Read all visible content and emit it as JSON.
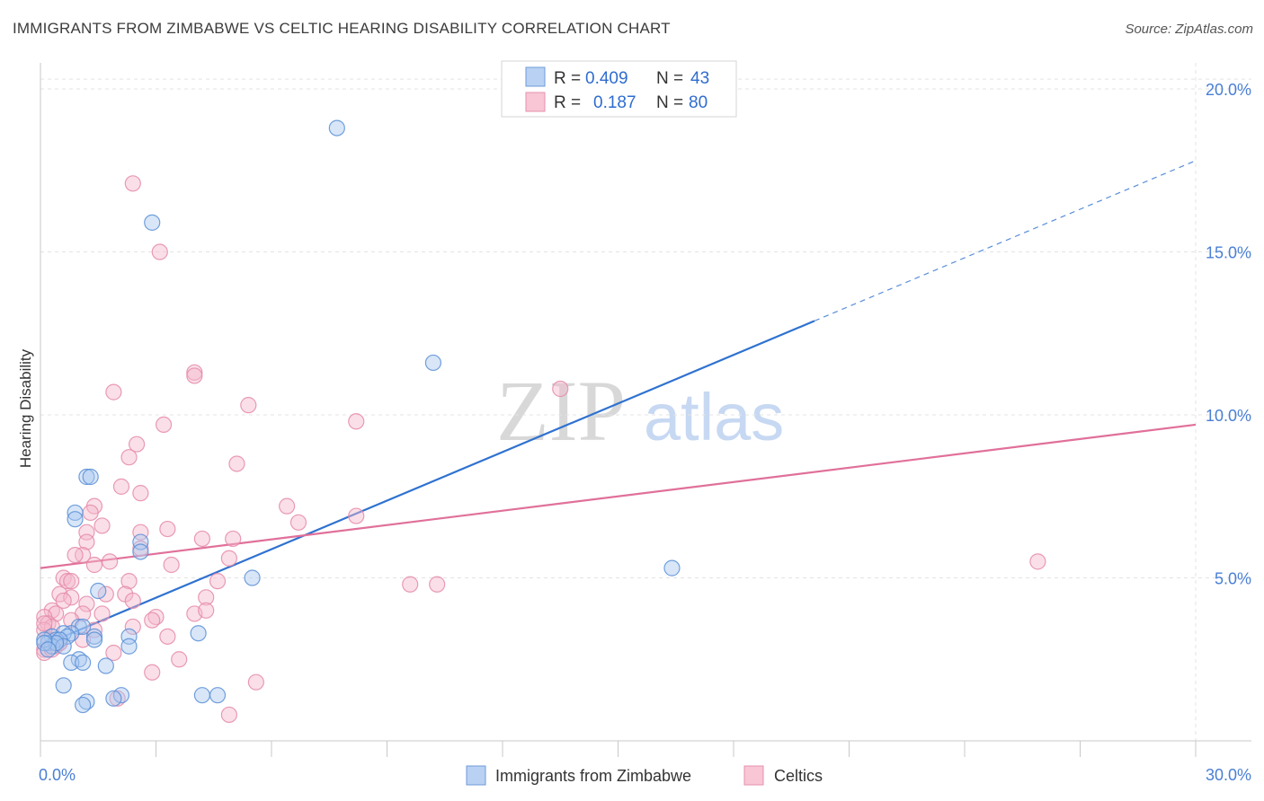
{
  "header": {
    "title": "IMMIGRANTS FROM ZIMBABWE VS CELTIC HEARING DISABILITY CORRELATION CHART",
    "source": "Source: ZipAtlas.com"
  },
  "watermark": {
    "zip": "ZIP",
    "atlas": "atlas"
  },
  "legend": {
    "rows": [
      {
        "r_label": "R =",
        "r_value": "0.409",
        "n_label": "N =",
        "n_value": "43"
      },
      {
        "r_label": "R =",
        "r_value": "0.187",
        "n_label": "N =",
        "n_value": "80"
      }
    ]
  },
  "bottom_legend": {
    "items": [
      {
        "label": "Immigrants from Zimbabwe"
      },
      {
        "label": "Celtics"
      }
    ]
  },
  "colors": {
    "blue_fill": "#a9c7f0",
    "blue_stroke": "#5b8fd6",
    "blue_line": "#2f72d0",
    "pink_fill": "#f5b9cc",
    "pink_stroke": "#e58aa8",
    "pink_line": "#e0709a",
    "grid": "#e3e3e3",
    "tick_label": "#4a7fd4"
  },
  "chart_data": {
    "type": "scatter",
    "title": "IMMIGRANTS FROM ZIMBABWE VS CELTIC HEARING DISABILITY CORRELATION CHART",
    "xlabel": "",
    "ylabel": "Hearing Disability",
    "xlim": [
      0,
      30
    ],
    "ylim": [
      0,
      20.8
    ],
    "x_tick_labels": [
      "0.0%",
      "30.0%"
    ],
    "y_ticks": [
      5,
      10,
      15,
      20
    ],
    "y_tick_labels": [
      "5.0%",
      "10.0%",
      "15.0%",
      "20.0%"
    ],
    "grid": true,
    "legend_position": "top-center",
    "series": [
      {
        "name": "Immigrants from Zimbabwe",
        "color": "#5b8fd6",
        "r": 0.409,
        "n": 43,
        "trend": {
          "x0": 0,
          "y0": 2.9,
          "x1": 30,
          "y1": 17.8,
          "solid_until_x": 20.1
        },
        "points": [
          [
            7.7,
            18.8
          ],
          [
            2.9,
            15.9
          ],
          [
            10.2,
            11.6
          ],
          [
            1.2,
            8.1
          ],
          [
            1.3,
            8.1
          ],
          [
            0.9,
            7.0
          ],
          [
            0.9,
            6.8
          ],
          [
            2.6,
            6.1
          ],
          [
            2.6,
            5.8
          ],
          [
            5.5,
            5.0
          ],
          [
            16.4,
            5.3
          ],
          [
            1.5,
            4.6
          ],
          [
            1.0,
            3.5
          ],
          [
            1.1,
            3.5
          ],
          [
            0.8,
            3.3
          ],
          [
            0.6,
            3.3
          ],
          [
            0.7,
            3.2
          ],
          [
            1.4,
            3.2
          ],
          [
            0.3,
            3.2
          ],
          [
            0.4,
            3.1
          ],
          [
            0.2,
            3.0
          ],
          [
            0.5,
            3.1
          ],
          [
            0.3,
            2.9
          ],
          [
            0.6,
            2.9
          ],
          [
            0.4,
            3.0
          ],
          [
            0.1,
            3.1
          ],
          [
            1.4,
            3.1
          ],
          [
            2.3,
            3.2
          ],
          [
            2.3,
            2.9
          ],
          [
            4.1,
            3.3
          ],
          [
            1.0,
            2.5
          ],
          [
            0.8,
            2.4
          ],
          [
            1.1,
            2.4
          ],
          [
            1.7,
            2.3
          ],
          [
            0.6,
            1.7
          ],
          [
            4.2,
            1.4
          ],
          [
            4.6,
            1.4
          ],
          [
            2.1,
            1.4
          ],
          [
            1.9,
            1.3
          ],
          [
            1.2,
            1.2
          ],
          [
            1.1,
            1.1
          ],
          [
            0.1,
            3.0
          ],
          [
            0.2,
            2.8
          ]
        ]
      },
      {
        "name": "Celtics",
        "color": "#e58aa8",
        "r": 0.187,
        "n": 80,
        "trend": {
          "x0": 0,
          "y0": 5.3,
          "x1": 30,
          "y1": 9.7
        },
        "points": [
          [
            2.4,
            17.1
          ],
          [
            3.1,
            15.0
          ],
          [
            4.0,
            11.3
          ],
          [
            4.0,
            11.2
          ],
          [
            1.9,
            10.7
          ],
          [
            13.5,
            10.8
          ],
          [
            5.4,
            10.3
          ],
          [
            8.2,
            9.8
          ],
          [
            3.2,
            9.7
          ],
          [
            2.5,
            9.1
          ],
          [
            2.3,
            8.7
          ],
          [
            5.1,
            8.5
          ],
          [
            2.1,
            7.8
          ],
          [
            2.6,
            7.6
          ],
          [
            6.4,
            7.2
          ],
          [
            1.4,
            7.2
          ],
          [
            1.3,
            7.0
          ],
          [
            6.7,
            6.7
          ],
          [
            8.2,
            6.9
          ],
          [
            1.6,
            6.6
          ],
          [
            2.6,
            6.4
          ],
          [
            1.2,
            6.4
          ],
          [
            3.3,
            6.5
          ],
          [
            4.2,
            6.2
          ],
          [
            5.0,
            6.2
          ],
          [
            1.2,
            6.1
          ],
          [
            2.6,
            5.9
          ],
          [
            1.1,
            5.7
          ],
          [
            0.9,
            5.7
          ],
          [
            1.8,
            5.5
          ],
          [
            4.9,
            5.6
          ],
          [
            3.4,
            5.4
          ],
          [
            1.4,
            5.4
          ],
          [
            25.9,
            5.5
          ],
          [
            0.6,
            5.0
          ],
          [
            0.7,
            4.9
          ],
          [
            0.8,
            4.9
          ],
          [
            2.3,
            4.9
          ],
          [
            4.6,
            4.9
          ],
          [
            9.6,
            4.8
          ],
          [
            10.3,
            4.8
          ],
          [
            0.5,
            4.5
          ],
          [
            1.7,
            4.5
          ],
          [
            2.2,
            4.5
          ],
          [
            2.4,
            4.3
          ],
          [
            0.8,
            4.4
          ],
          [
            0.6,
            4.3
          ],
          [
            1.2,
            4.2
          ],
          [
            4.3,
            4.4
          ],
          [
            0.3,
            4.0
          ],
          [
            0.4,
            3.9
          ],
          [
            1.1,
            3.9
          ],
          [
            1.6,
            3.9
          ],
          [
            4.0,
            3.9
          ],
          [
            4.3,
            4.0
          ],
          [
            3.0,
            3.8
          ],
          [
            2.9,
            3.7
          ],
          [
            0.1,
            3.8
          ],
          [
            0.2,
            3.6
          ],
          [
            0.8,
            3.7
          ],
          [
            0.3,
            3.5
          ],
          [
            0.1,
            3.4
          ],
          [
            1.4,
            3.4
          ],
          [
            0.1,
            3.6
          ],
          [
            2.4,
            3.5
          ],
          [
            3.3,
            3.2
          ],
          [
            1.1,
            3.1
          ],
          [
            0.2,
            3.1
          ],
          [
            0.5,
            3.0
          ],
          [
            0.4,
            2.9
          ],
          [
            0.1,
            2.8
          ],
          [
            0.1,
            2.7
          ],
          [
            1.9,
            2.7
          ],
          [
            3.6,
            2.5
          ],
          [
            2.9,
            2.1
          ],
          [
            5.6,
            1.8
          ],
          [
            2.0,
            1.3
          ],
          [
            4.9,
            0.8
          ],
          [
            0.5,
            3.0
          ],
          [
            0.3,
            2.8
          ]
        ]
      }
    ]
  }
}
